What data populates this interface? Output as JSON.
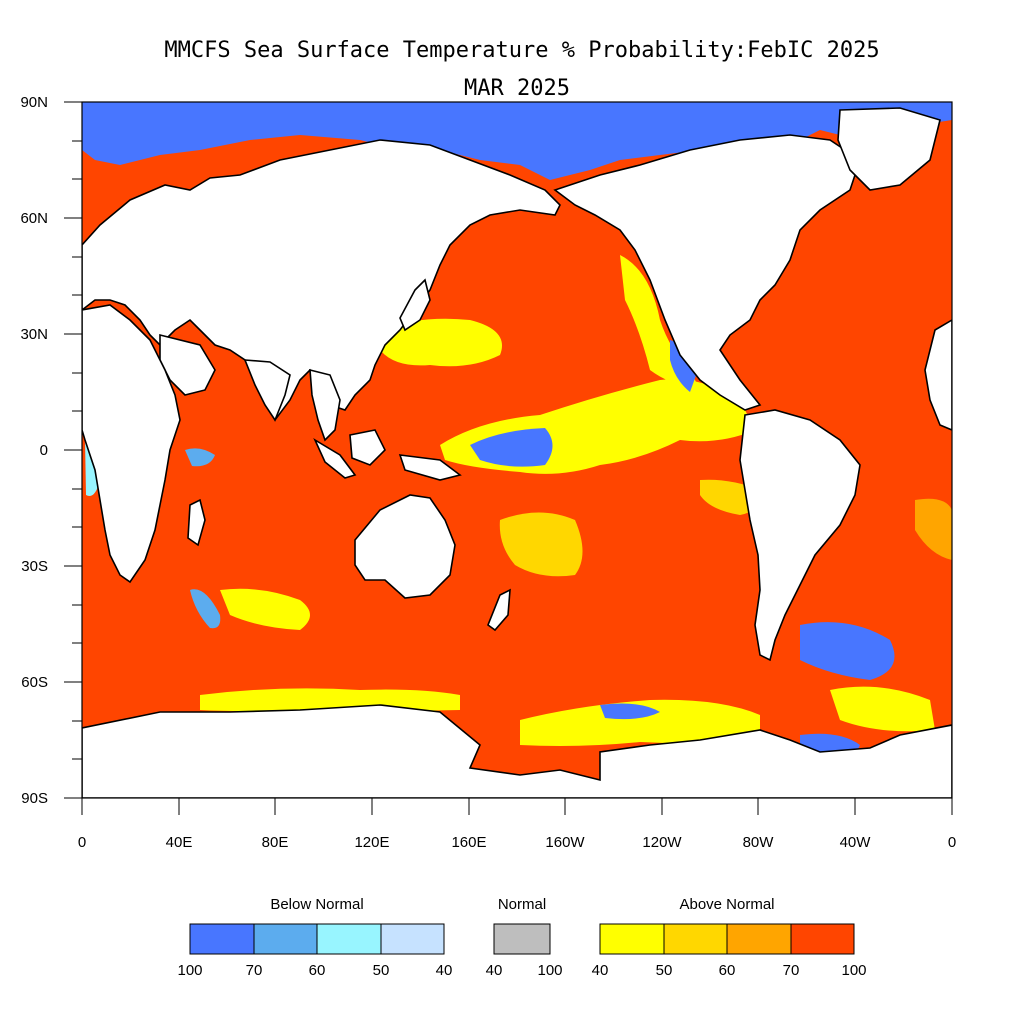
{
  "title": {
    "line1": "MMCFS Sea Surface Temperature % Probability:FebIC 2025",
    "line2": "MAR 2025"
  },
  "axes": {
    "lat_ticks": [
      "90N",
      "60N",
      "30N",
      "0",
      "30S",
      "60S",
      "90S"
    ],
    "lon_ticks": [
      "0",
      "40E",
      "80E",
      "120E",
      "160E",
      "160W",
      "120W",
      "80W",
      "40W",
      "0"
    ]
  },
  "colors": {
    "ocean_above_70_100": "#ff4500",
    "above_60_70": "#ffa500",
    "above_50_60": "#ffd700",
    "above_40_50": "#ffff00",
    "below_40_50": "#c6e2ff",
    "below_50_60": "#98f5ff",
    "below_60_70": "#5cacee",
    "below_70_100": "#4876ff",
    "normal": "#bebebe",
    "land": "#ffffff"
  },
  "legend": {
    "below": {
      "title": "Below Normal",
      "labels": [
        "100",
        "70",
        "60",
        "50",
        "40"
      ],
      "colors": [
        "#4876ff",
        "#5cacee",
        "#98f5ff",
        "#c6e2ff"
      ]
    },
    "normal": {
      "title": "Normal",
      "labels": [
        "40",
        "100"
      ],
      "colors": [
        "#bebebe"
      ]
    },
    "above": {
      "title": "Above Normal",
      "labels": [
        "40",
        "50",
        "60",
        "70",
        "100"
      ],
      "colors": [
        "#ffff00",
        "#ffd700",
        "#ffa500",
        "#ff4500"
      ]
    }
  }
}
